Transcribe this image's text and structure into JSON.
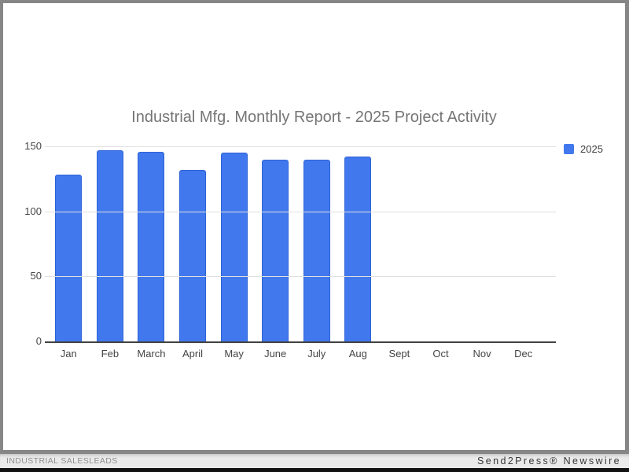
{
  "chart_data": {
    "type": "bar",
    "title": "Industrial Mfg. Monthly Report - 2025 Project Activity",
    "categories": [
      "Jan",
      "Feb",
      "March",
      "April",
      "May",
      "June",
      "July",
      "Aug",
      "Sept",
      "Oct",
      "Nov",
      "Dec"
    ],
    "series": [
      {
        "name": "2025",
        "values": [
          128,
          147,
          146,
          132,
          145,
          140,
          140,
          142,
          0,
          0,
          0,
          0
        ]
      }
    ],
    "xlabel": "",
    "ylabel": "",
    "ylim": [
      0,
      150
    ],
    "yticks": [
      0,
      50,
      100,
      150
    ],
    "grid": true,
    "legend_position": "right",
    "bar_color": "#4178ee",
    "bar_border_color": "#2d63d6",
    "title_color": "#757575",
    "axis_color": "#424242",
    "gridline_color": "#e0e0e0",
    "tick_label_color": "#444444"
  },
  "legend": {
    "label": "2025"
  },
  "footer": {
    "left": "INDUSTRIAL SALESLEADS",
    "right": "Send2Press® Newswire"
  }
}
